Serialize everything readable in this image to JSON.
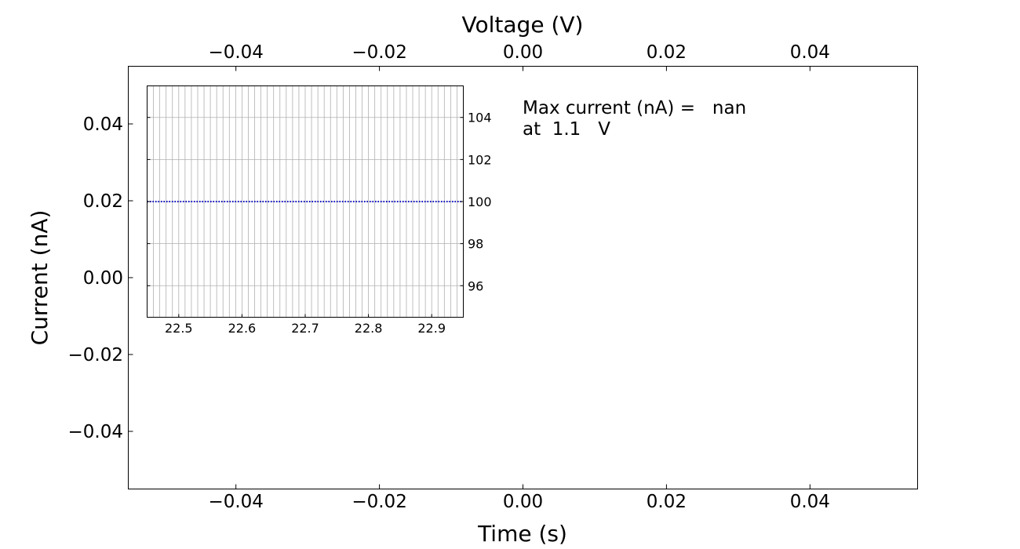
{
  "chart_data": [
    {
      "type": "line",
      "xlabel": "Time (s)",
      "ylabel": "Current (nA)",
      "top_xlabel": "Voltage (V)",
      "xlim": [
        -0.055,
        0.055
      ],
      "ylim": [
        -0.055,
        0.055
      ],
      "top_xlim": [
        -0.055,
        0.055
      ],
      "xticks": [
        -0.04,
        -0.02,
        0.0,
        0.02,
        0.04
      ],
      "xtick_labels": [
        "−0.04",
        "−0.02",
        "0.00",
        "0.02",
        "0.04"
      ],
      "yticks": [
        -0.04,
        -0.02,
        0.0,
        0.02,
        0.04
      ],
      "ytick_labels": [
        "−0.04",
        "−0.02",
        "0.00",
        "0.02",
        "0.04"
      ],
      "top_xticks": [
        -0.04,
        -0.02,
        0.0,
        0.02,
        0.04
      ],
      "top_xtick_labels": [
        "−0.04",
        "−0.02",
        "0.00",
        "0.02",
        "0.04"
      ],
      "grid": false,
      "series": [],
      "annotation": {
        "line1": "Max current (nA) =   nan",
        "line2": "at  1.1   V"
      }
    },
    {
      "type": "line",
      "xlim": [
        22.45,
        22.95
      ],
      "ylim": [
        94.5,
        105.5
      ],
      "xticks": [
        22.5,
        22.6,
        22.7,
        22.8,
        22.9
      ],
      "xtick_labels": [
        "22.5",
        "22.6",
        "22.7",
        "22.8",
        "22.9"
      ],
      "yticks": [
        96,
        98,
        100,
        102,
        104
      ],
      "ytick_labels": [
        "96",
        "98",
        "100",
        "102",
        "104"
      ],
      "grid": true,
      "grid_x_step": 0.01,
      "series": [
        {
          "x": [
            22.45,
            22.95
          ],
          "y": [
            100,
            100
          ],
          "color": "#0000cc",
          "style": "dotted"
        }
      ]
    }
  ]
}
